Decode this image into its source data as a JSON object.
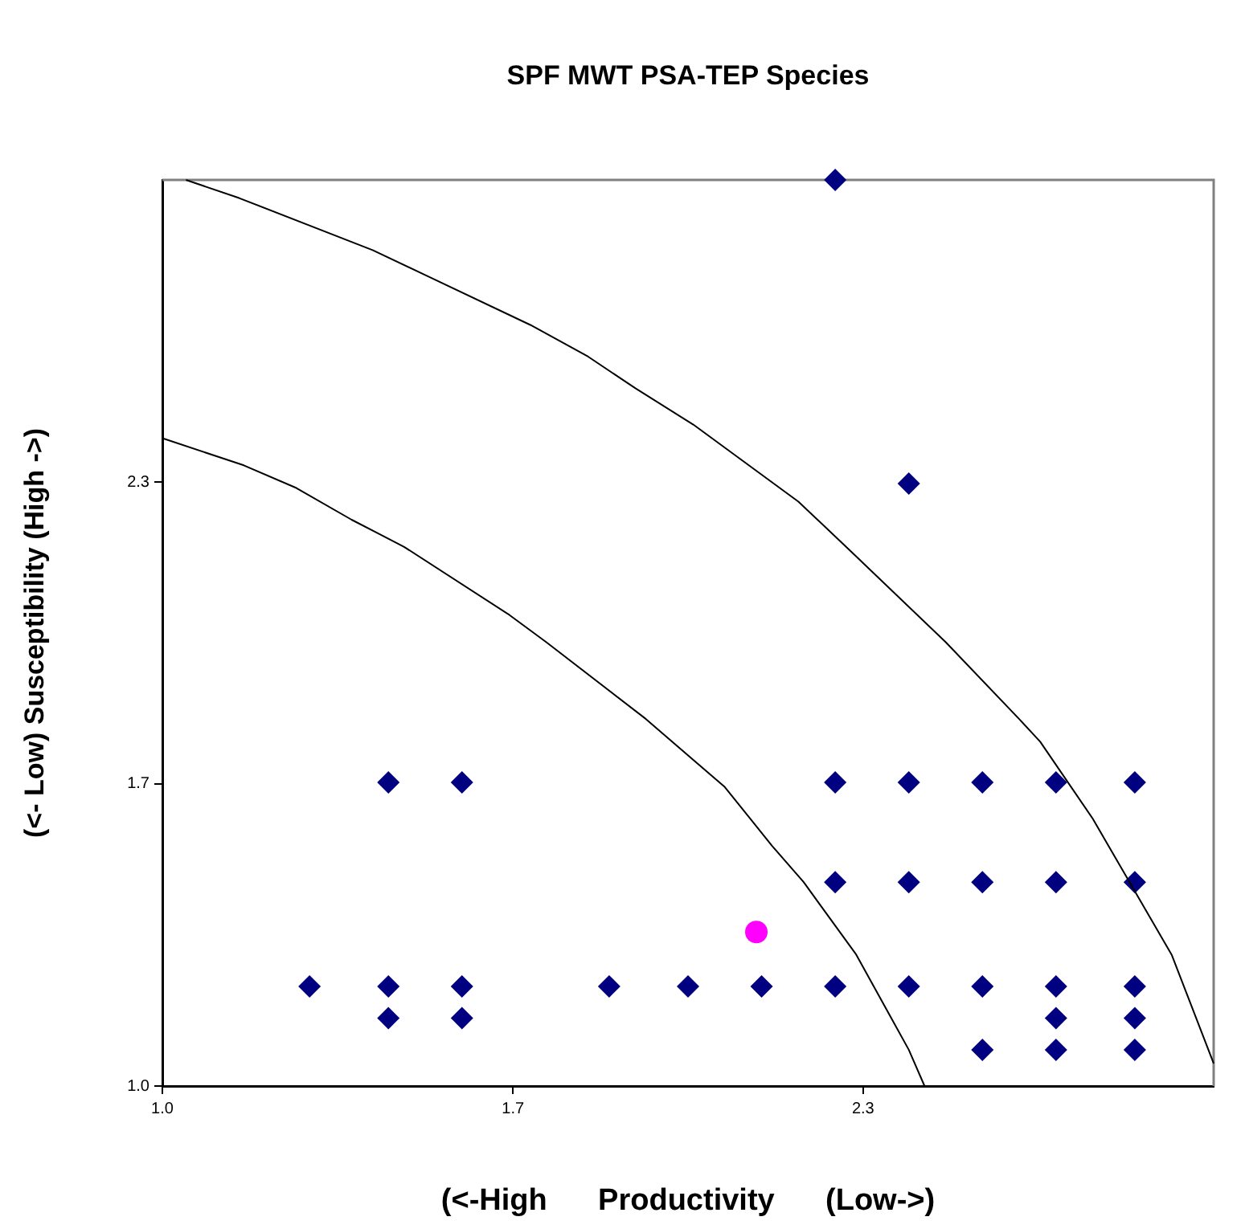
{
  "chart_data": {
    "type": "scatter",
    "title": "SPF MWT PSA-TEP Species",
    "xlabel": "(<-High      Productivity      (Low->)",
    "ylabel": "(<- Low) Susceptibility (High ->)",
    "xlim": [
      1,
      3
    ],
    "ylim": [
      1,
      3
    ],
    "xticks": [
      {
        "value": 1,
        "label": "1.0"
      },
      {
        "value": 1.667,
        "label": "1.7"
      },
      {
        "value": 2.333,
        "label": "2.3"
      }
    ],
    "yticks": [
      {
        "value": 1,
        "label": "1.0"
      },
      {
        "value": 1.667,
        "label": "1.7"
      },
      {
        "value": 2.333,
        "label": "2.3"
      }
    ],
    "grid": false,
    "legend": false,
    "series": [
      {
        "type": "line",
        "color": "#000000",
        "marker": "none",
        "line_style": "solid",
        "x": [
          1.045,
          1.146,
          1.4,
          1.5,
          1.7,
          1.81,
          1.9,
          2.01,
          2.21,
          2.31,
          2.49,
          2.63,
          2.67,
          2.77,
          2.92,
          3.0
        ],
        "values": [
          3.0,
          2.96,
          2.845,
          2.79,
          2.68,
          2.61,
          2.54,
          2.46,
          2.29,
          2.18,
          1.98,
          1.81,
          1.76,
          1.59,
          1.29,
          1.05
        ]
      },
      {
        "type": "line",
        "color": "#000000",
        "marker": "none",
        "line_style": "solid",
        "x": [
          1.0,
          1.155,
          1.255,
          1.36,
          1.41,
          1.46,
          1.66,
          1.73,
          1.92,
          2.01,
          2.07,
          2.16,
          2.22,
          2.32,
          2.42,
          2.45
        ],
        "values": [
          2.43,
          2.37,
          2.32,
          2.25,
          2.22,
          2.19,
          2.04,
          1.98,
          1.81,
          1.72,
          1.66,
          1.53,
          1.45,
          1.29,
          1.08,
          1.0
        ]
      },
      {
        "type": "scatter",
        "color": "#000080",
        "marker": "diamond",
        "x": [
          2.28,
          2.42,
          1.43,
          1.57,
          2.28,
          2.42,
          2.56,
          2.7,
          2.85,
          2.28,
          2.42,
          2.56,
          2.7,
          2.85,
          1.28,
          1.43,
          1.57,
          1.85,
          2.0,
          2.14,
          2.28,
          2.42,
          2.56,
          2.7,
          2.85,
          1.43,
          1.57,
          2.7,
          2.85,
          2.56,
          2.7,
          2.85
        ],
        "values": [
          3.0,
          2.33,
          1.67,
          1.67,
          1.67,
          1.67,
          1.67,
          1.67,
          1.67,
          1.45,
          1.45,
          1.45,
          1.45,
          1.45,
          1.22,
          1.22,
          1.22,
          1.22,
          1.22,
          1.22,
          1.22,
          1.22,
          1.22,
          1.22,
          1.22,
          1.15,
          1.15,
          1.15,
          1.15,
          1.08,
          1.08,
          1.08
        ]
      },
      {
        "type": "scatter",
        "color": "#ff00ff",
        "marker": "circle",
        "x": [
          2.13
        ],
        "values": [
          1.34
        ]
      }
    ]
  }
}
